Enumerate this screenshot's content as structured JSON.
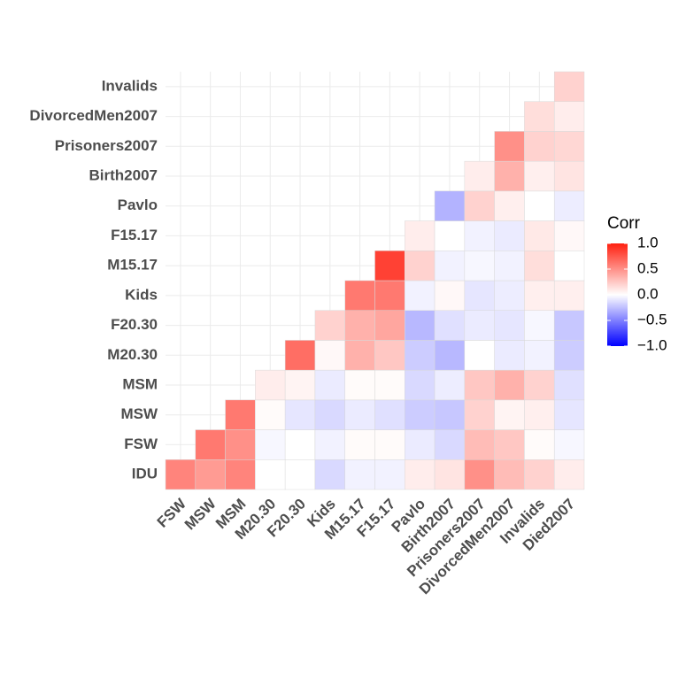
{
  "chart_data": {
    "type": "heatmap",
    "x": [
      "FSW",
      "MSW",
      "MSM",
      "M20.30",
      "F20.30",
      "Kids",
      "M15.17",
      "F15.17",
      "Pavlo",
      "Birth2007",
      "Prisoners2007",
      "DivorcedMen2007",
      "Invalids",
      "Died2007"
    ],
    "y": [
      "IDU",
      "FSW",
      "MSW",
      "MSM",
      "M20.30",
      "F20.30",
      "Kids",
      "M15.17",
      "F15.17",
      "Pavlo",
      "Birth2007",
      "Prisoners2007",
      "DivorcedMen2007",
      "Invalids"
    ],
    "values": [
      [
        0.55,
        0.45,
        0.55,
        0.0,
        0.0,
        -0.15,
        -0.05,
        -0.05,
        0.08,
        0.12,
        0.5,
        0.3,
        0.2,
        0.08
      ],
      [
        null,
        0.6,
        0.5,
        -0.03,
        0.0,
        -0.05,
        0.02,
        0.02,
        -0.08,
        -0.15,
        0.3,
        0.25,
        0.02,
        -0.03
      ],
      [
        null,
        null,
        0.6,
        0.02,
        -0.1,
        -0.15,
        -0.08,
        -0.12,
        -0.2,
        -0.22,
        0.2,
        0.05,
        0.07,
        -0.1
      ],
      [
        null,
        null,
        null,
        0.08,
        0.05,
        -0.08,
        0.02,
        0.02,
        -0.15,
        -0.07,
        0.25,
        0.35,
        0.2,
        -0.12
      ],
      [
        null,
        null,
        null,
        null,
        0.65,
        0.03,
        0.35,
        0.25,
        -0.2,
        -0.28,
        0.0,
        -0.08,
        -0.05,
        -0.2
      ],
      [
        null,
        null,
        null,
        null,
        null,
        0.2,
        0.35,
        0.4,
        -0.28,
        -0.12,
        -0.08,
        -0.1,
        -0.03,
        -0.22
      ],
      [
        null,
        null,
        null,
        null,
        null,
        null,
        0.6,
        0.6,
        -0.05,
        0.03,
        -0.1,
        -0.07,
        0.07,
        0.07
      ],
      [
        null,
        null,
        null,
        null,
        null,
        null,
        null,
        0.85,
        0.2,
        -0.05,
        -0.03,
        -0.05,
        0.15,
        0.0
      ],
      [
        null,
        null,
        null,
        null,
        null,
        null,
        null,
        null,
        0.08,
        0.0,
        -0.05,
        -0.08,
        0.1,
        0.03
      ],
      [
        null,
        null,
        null,
        null,
        null,
        null,
        null,
        null,
        null,
        -0.3,
        0.2,
        0.07,
        0.0,
        -0.07
      ],
      [
        null,
        null,
        null,
        null,
        null,
        null,
        null,
        null,
        null,
        null,
        0.08,
        0.35,
        0.07,
        0.12
      ],
      [
        null,
        null,
        null,
        null,
        null,
        null,
        null,
        null,
        null,
        null,
        null,
        0.5,
        0.2,
        0.18
      ],
      [
        null,
        null,
        null,
        null,
        null,
        null,
        null,
        null,
        null,
        null,
        null,
        null,
        0.15,
        0.08
      ],
      [
        null,
        null,
        null,
        null,
        null,
        null,
        null,
        null,
        null,
        null,
        null,
        null,
        null,
        0.2
      ]
    ],
    "colorscale": {
      "low": "#0000ff",
      "mid": "#ffffff",
      "high": "#ff2010"
    },
    "legend_title": "Corr",
    "colorlim": [
      -1,
      1
    ],
    "colorticks": [
      {
        "value": 1,
        "label": "1.0"
      },
      0.5,
      {
        "value": 0,
        "label": "0.0"
      },
      {
        "value": -0.5,
        "label": "−0.5"
      },
      {
        "value": -1,
        "label": "−1.0"
      }
    ],
    "grid": true
  }
}
